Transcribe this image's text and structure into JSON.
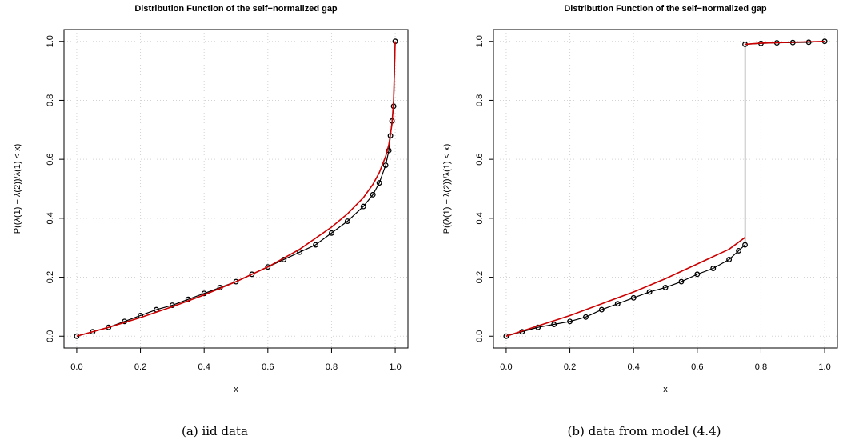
{
  "figure": {
    "captions": [
      "(a) iid data",
      "(b) data from model (4.4)"
    ]
  },
  "colors": {
    "empirical": "#000000",
    "theoretical": "#cc0000",
    "grid": "#d3d3d3"
  },
  "chart_data": [
    {
      "type": "line",
      "title": "Distribution Function of the self−normalized gap",
      "xlabel": "x",
      "ylabel": "P((λ(1) − λ(2))/λ(1) < x)",
      "xlim": [
        0,
        1
      ],
      "ylim": [
        0,
        1
      ],
      "xticks": [
        "0.0",
        "0.2",
        "0.4",
        "0.6",
        "0.8",
        "1.0"
      ],
      "yticks": [
        "0.0",
        "0.2",
        "0.4",
        "0.6",
        "0.8",
        "1.0"
      ],
      "grid": true,
      "series": [
        {
          "style": "points",
          "x": [
            0.0,
            0.05,
            0.1,
            0.15,
            0.2,
            0.25,
            0.3,
            0.35,
            0.4,
            0.45,
            0.5,
            0.55,
            0.6,
            0.65,
            0.7,
            0.75,
            0.8,
            0.85,
            0.9,
            0.93,
            0.95,
            0.97,
            0.98,
            0.985,
            0.99,
            0.995,
            1.0
          ],
          "y": [
            0.0,
            0.015,
            0.03,
            0.05,
            0.07,
            0.09,
            0.105,
            0.125,
            0.145,
            0.165,
            0.185,
            0.21,
            0.235,
            0.26,
            0.285,
            0.31,
            0.35,
            0.39,
            0.44,
            0.48,
            0.52,
            0.58,
            0.63,
            0.68,
            0.73,
            0.78,
            1.0
          ]
        },
        {
          "style": "line",
          "x": [
            0.0,
            0.1,
            0.2,
            0.3,
            0.4,
            0.5,
            0.6,
            0.7,
            0.8,
            0.85,
            0.9,
            0.93,
            0.95,
            0.97,
            0.98,
            0.99,
            0.995,
            1.0
          ],
          "y": [
            0.0,
            0.03,
            0.063,
            0.1,
            0.14,
            0.185,
            0.235,
            0.295,
            0.37,
            0.415,
            0.47,
            0.515,
            0.555,
            0.61,
            0.65,
            0.72,
            0.8,
            1.0
          ]
        }
      ]
    },
    {
      "type": "line",
      "title": "Distribution Function of the self−normalized gap",
      "xlabel": "x",
      "ylabel": "P((λ(1) − λ(2))/λ(1) < x)",
      "xlim": [
        0,
        1
      ],
      "ylim": [
        0,
        1
      ],
      "xticks": [
        "0.0",
        "0.2",
        "0.4",
        "0.6",
        "0.8",
        "1.0"
      ],
      "yticks": [
        "0.0",
        "0.2",
        "0.4",
        "0.6",
        "0.8",
        "1.0"
      ],
      "grid": true,
      "series": [
        {
          "style": "points",
          "x": [
            0.0,
            0.05,
            0.1,
            0.15,
            0.2,
            0.25,
            0.3,
            0.35,
            0.4,
            0.45,
            0.5,
            0.55,
            0.6,
            0.65,
            0.7,
            0.73,
            0.75,
            0.75,
            0.8,
            0.85,
            0.9,
            0.95,
            1.0
          ],
          "y": [
            0.0,
            0.015,
            0.03,
            0.04,
            0.05,
            0.065,
            0.09,
            0.11,
            0.13,
            0.15,
            0.165,
            0.185,
            0.21,
            0.23,
            0.26,
            0.29,
            0.31,
            0.99,
            0.993,
            0.995,
            0.996,
            0.997,
            1.0
          ]
        },
        {
          "style": "line",
          "x": [
            0.0,
            0.1,
            0.2,
            0.3,
            0.4,
            0.5,
            0.6,
            0.7,
            0.75
          ],
          "y": [
            0.0,
            0.035,
            0.07,
            0.11,
            0.15,
            0.195,
            0.245,
            0.295,
            0.335
          ]
        },
        {
          "style": "line",
          "x": [
            0.75,
            0.8,
            0.9,
            1.0
          ],
          "y": [
            0.99,
            0.994,
            0.997,
            1.0
          ]
        },
        {
          "style": "jump",
          "x": [
            0.75,
            0.75
          ],
          "y": [
            0.31,
            0.99
          ]
        }
      ]
    }
  ]
}
